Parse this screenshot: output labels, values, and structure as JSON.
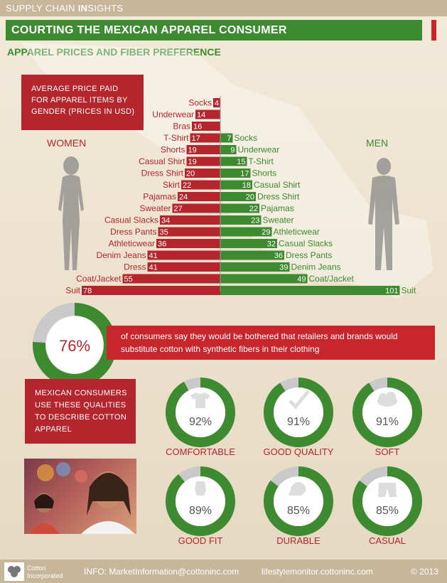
{
  "header": {
    "brand_left": "SUPPLY CHAIN ",
    "brand_bold": "IN",
    "brand_right": "SIGHTS"
  },
  "title": "COURTING THE MEXICAN APPAREL CONSUMER",
  "subtitle": "APPAREL PRICES AND FIBER PREFERENCE",
  "price_box": "AVERAGE PRICE PAID FOR APPAREL ITEMS BY GENDER (PRICES IN USD)",
  "labels": {
    "women": "WOMEN",
    "men": "MEN"
  },
  "stat": {
    "value": "76%",
    "fraction": 0.76,
    "text": "of consumers say they would be bothered that retailers and brands would substitute cotton with synthetic fibers in their clothing"
  },
  "qualities_box": "MEXICAN CONSUMERS USE THESE QUALITIES TO DESCRIBE COTTON APPAREL",
  "qualities": [
    {
      "label": "COMFORTABLE",
      "value": "92%",
      "fraction": 0.92,
      "icon": "tshirt-icon"
    },
    {
      "label": "GOOD QUALITY",
      "value": "91%",
      "fraction": 0.91,
      "icon": "checkmark-icon"
    },
    {
      "label": "SOFT",
      "value": "91%",
      "fraction": 0.91,
      "icon": "cloud-icon"
    },
    {
      "label": "GOOD FIT",
      "value": "89%",
      "fraction": 0.89,
      "icon": "dress-form-icon"
    },
    {
      "label": "DURABLE",
      "value": "85%",
      "fraction": 0.85,
      "icon": "flexed-arm-icon"
    },
    {
      "label": "CASUAL",
      "value": "85%",
      "fraction": 0.85,
      "icon": "shorts-icon"
    }
  ],
  "footer": {
    "logo": "Cotton Incorporated",
    "info": "INFO:  MarketInformation@cottoninc.com",
    "site": "lifestylemonitor.cottoninc.com",
    "copyright": "© 2013"
  },
  "colors": {
    "red": "#b5252d",
    "green": "#3d8a30",
    "ring_gray": "#c9c9c9"
  },
  "chart_data": {
    "type": "bar",
    "title": "AVERAGE PRICE PAID FOR APPAREL ITEMS BY GENDER (PRICES IN USD)",
    "series": [
      {
        "name": "WOMEN",
        "categories": [
          "Socks",
          "Underwear",
          "Bras",
          "T-Shirt",
          "Shorts",
          "Casual Shirt",
          "Dress Shirt",
          "Skirt",
          "Pajamas",
          "Sweater",
          "Casual Slacks",
          "Dress Pants",
          "Athleticwear",
          "Denim Jeans",
          "Dress",
          "Coat/Jacket",
          "Suit"
        ],
        "values": [
          4,
          14,
          16,
          17,
          19,
          19,
          20,
          22,
          24,
          27,
          34,
          35,
          36,
          41,
          41,
          55,
          78
        ]
      },
      {
        "name": "MEN",
        "categories": [
          "Socks",
          "Underwear",
          "T-Shirt",
          "Shorts",
          "Casual Shirt",
          "Dress Shirt",
          "Pajamas",
          "Sweater",
          "Athleticwear",
          "Casual Slacks",
          "Dress Pants",
          "Denim Jeans",
          "Coat/Jacket",
          "Suit"
        ],
        "values": [
          7,
          9,
          15,
          17,
          18,
          20,
          22,
          23,
          29,
          32,
          36,
          39,
          49,
          101
        ]
      }
    ]
  }
}
